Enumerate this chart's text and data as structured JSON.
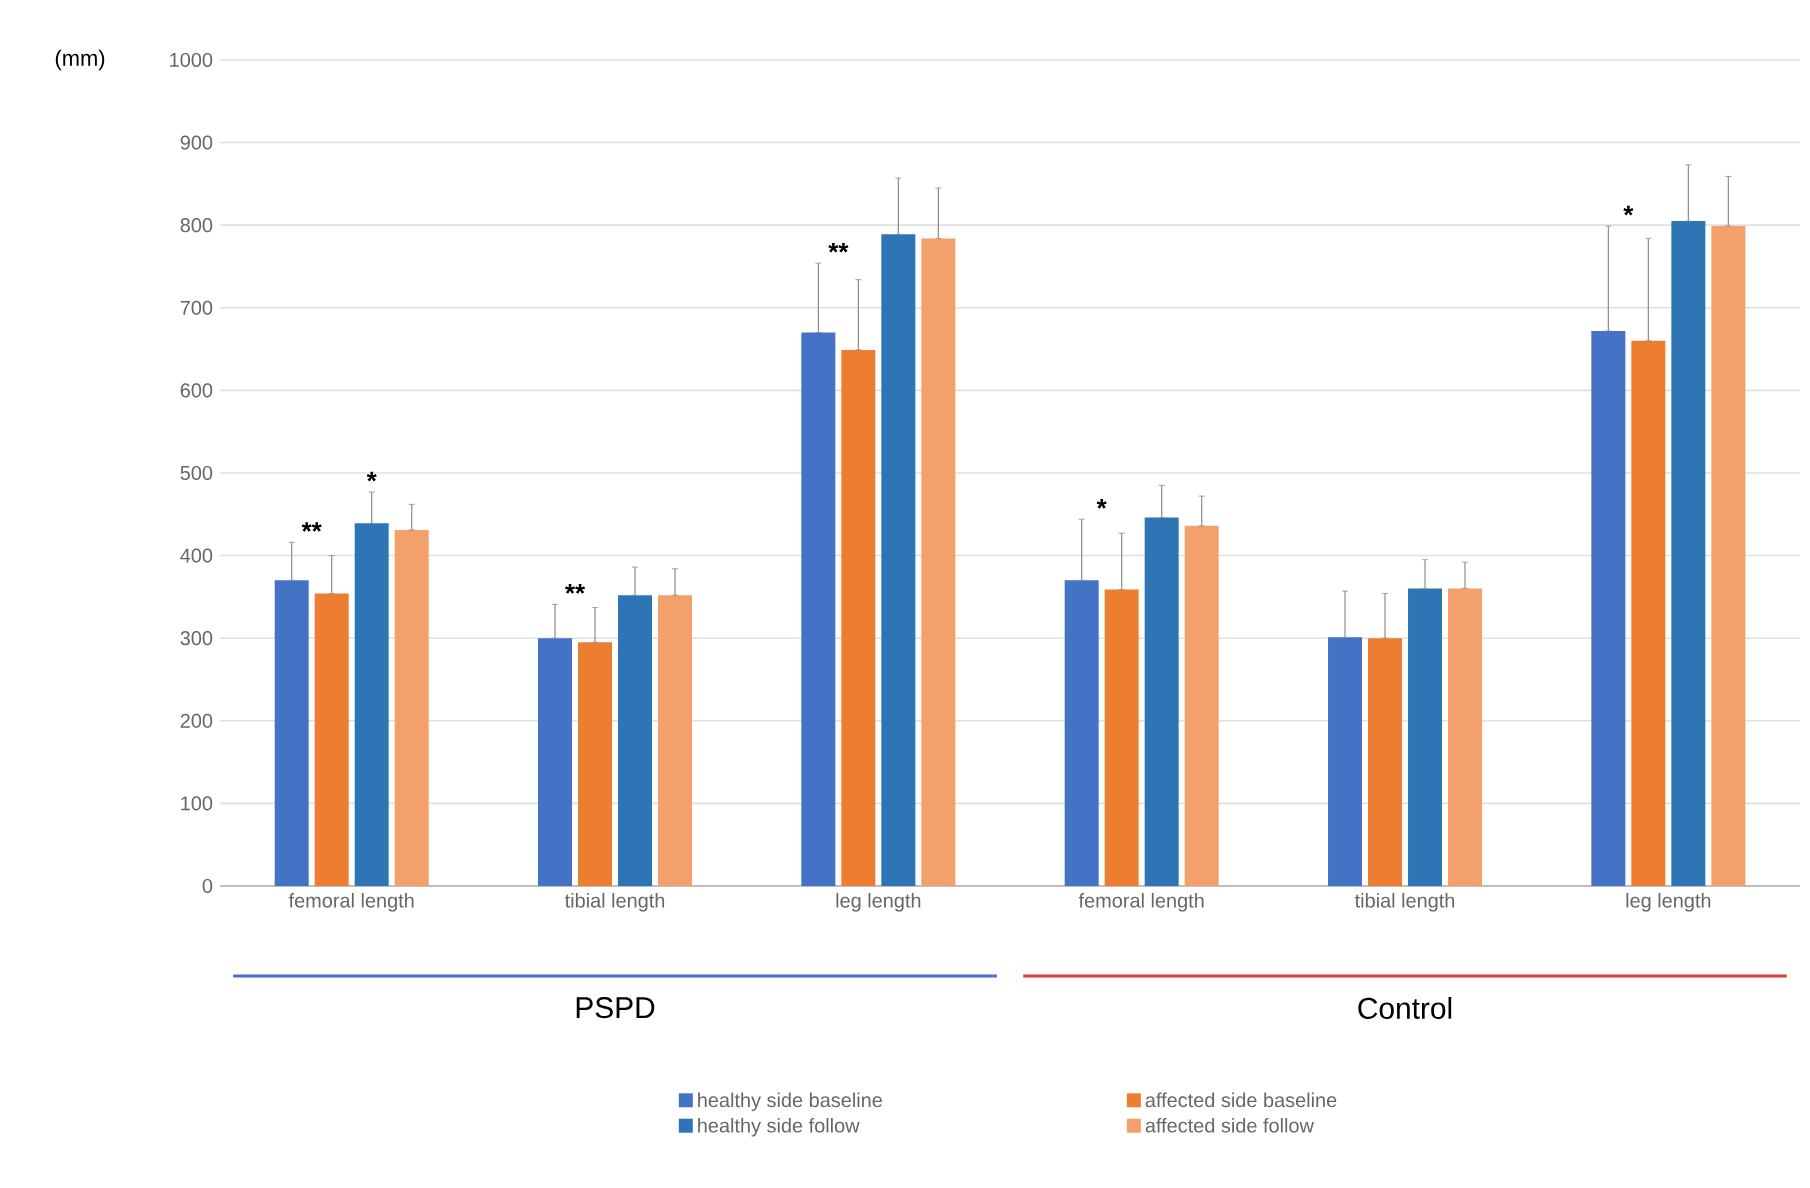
{
  "chart_data": {
    "type": "bar",
    "ylabel": "(mm)",
    "categories": [
      "femoral length",
      "tibial length",
      "leg length",
      "femoral length",
      "tibial length",
      "leg length"
    ],
    "series": [
      {
        "name": "healthy side baseline",
        "color": "#4472c4",
        "values": [
          370,
          300,
          670,
          370,
          301,
          672
        ],
        "errors": [
          [
            370,
            416
          ],
          [
            300,
            341
          ],
          [
            670,
            754
          ],
          [
            370,
            444
          ],
          [
            301,
            357
          ],
          [
            672,
            799
          ]
        ]
      },
      {
        "name": "affected side baseline",
        "color": "#ed7d31",
        "values": [
          354,
          295,
          649,
          359,
          300,
          660
        ],
        "errors": [
          [
            354,
            400
          ],
          [
            295,
            337
          ],
          [
            649,
            734
          ],
          [
            359,
            427
          ],
          [
            300,
            354
          ],
          [
            660,
            784
          ]
        ]
      },
      {
        "name": "healthy side follow",
        "color": "#2e75b6",
        "values": [
          439,
          352,
          789,
          446,
          360,
          805
        ],
        "errors": [
          [
            439,
            477
          ],
          [
            352,
            386
          ],
          [
            789,
            857
          ],
          [
            446,
            485
          ],
          [
            360,
            395
          ],
          [
            805,
            873
          ]
        ]
      },
      {
        "name": "affected side follow",
        "color": "#f4a06a",
        "values": [
          431,
          352,
          784,
          436,
          360,
          799
        ],
        "errors": [
          [
            431,
            462
          ],
          [
            352,
            384
          ],
          [
            784,
            845
          ],
          [
            436,
            472
          ],
          [
            360,
            392
          ],
          [
            799,
            859
          ]
        ]
      }
    ],
    "ylim": [
      0,
      1000
    ],
    "yticks": [
      0,
      100,
      200,
      300,
      400,
      500,
      600,
      700,
      800,
      900,
      1000
    ],
    "grid": "y",
    "legend": "bottom",
    "annotations": [
      "**",
      "*",
      "**",
      "**",
      "*",
      "*",
      "PSPD",
      "Control"
    ]
  }
}
